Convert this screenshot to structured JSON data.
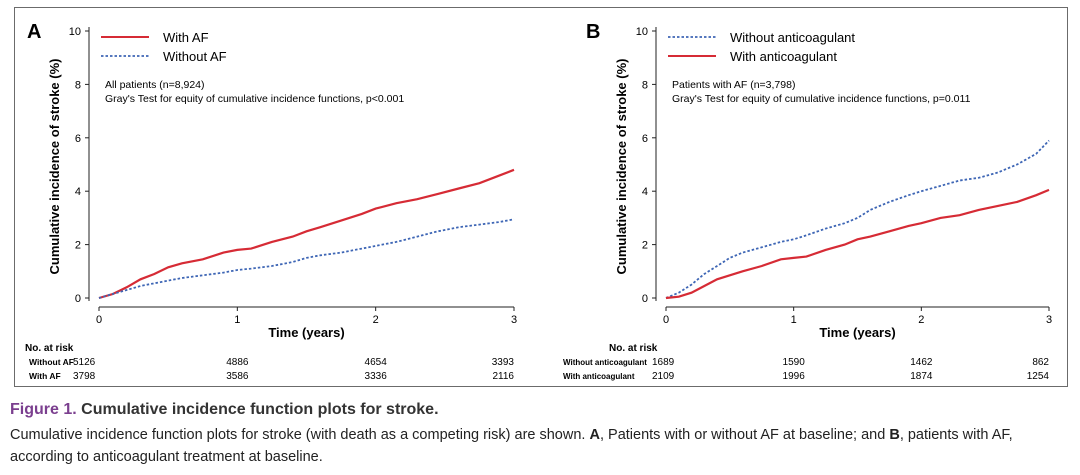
{
  "chart_data": [
    {
      "type": "line",
      "panel_label": "A",
      "ylabel": "Cumulative incidence of stroke (%)",
      "xlabel": "Time (years)",
      "xlim": [
        0,
        3
      ],
      "ylim": [
        0,
        10
      ],
      "xticks": [
        "0",
        "1",
        "2",
        "3"
      ],
      "yticks": [
        "0",
        "2",
        "4",
        "6",
        "8",
        "10"
      ],
      "grid": false,
      "legend_position": "top-left",
      "annotation_line1": "All patients (n=8,924)",
      "annotation_line2": "Gray's Test for equity of cumulative incidence functions, p<0.001",
      "series": [
        {
          "name": "With AF",
          "color": "#d62b35",
          "style": "solid",
          "x": [
            0,
            0.1,
            0.2,
            0.3,
            0.4,
            0.5,
            0.6,
            0.75,
            0.9,
            1.0,
            1.1,
            1.25,
            1.4,
            1.5,
            1.6,
            1.75,
            1.9,
            2.0,
            2.15,
            2.3,
            2.45,
            2.6,
            2.75,
            2.9,
            3.0
          ],
          "y": [
            0,
            0.15,
            0.4,
            0.7,
            0.9,
            1.15,
            1.3,
            1.45,
            1.7,
            1.8,
            1.85,
            2.1,
            2.3,
            2.5,
            2.65,
            2.9,
            3.15,
            3.35,
            3.55,
            3.7,
            3.9,
            4.1,
            4.3,
            4.6,
            4.8
          ]
        },
        {
          "name": "Without AF",
          "color": "#3e66b5",
          "style": "dotted",
          "x": [
            0,
            0.1,
            0.2,
            0.3,
            0.4,
            0.5,
            0.6,
            0.75,
            0.9,
            1.0,
            1.1,
            1.25,
            1.4,
            1.5,
            1.6,
            1.75,
            1.9,
            2.0,
            2.15,
            2.3,
            2.45,
            2.6,
            2.75,
            2.9,
            3.0
          ],
          "y": [
            0,
            0.15,
            0.3,
            0.45,
            0.55,
            0.65,
            0.75,
            0.85,
            0.95,
            1.05,
            1.1,
            1.2,
            1.35,
            1.5,
            1.6,
            1.7,
            1.85,
            1.95,
            2.1,
            2.3,
            2.5,
            2.65,
            2.75,
            2.85,
            2.95
          ]
        }
      ],
      "at_risk": {
        "header": "No. at risk",
        "rows": [
          {
            "label": "Without AF",
            "values": [
              "5126",
              "4886",
              "4654",
              "3393"
            ]
          },
          {
            "label": "With AF",
            "values": [
              "3798",
              "3586",
              "3336",
              "2116"
            ]
          }
        ]
      }
    },
    {
      "type": "line",
      "panel_label": "B",
      "ylabel": "Cumulative incidence of stroke (%)",
      "xlabel": "Time (years)",
      "xlim": [
        0,
        3
      ],
      "ylim": [
        0,
        10
      ],
      "xticks": [
        "0",
        "1",
        "2",
        "3"
      ],
      "yticks": [
        "0",
        "2",
        "4",
        "6",
        "8",
        "10"
      ],
      "grid": false,
      "legend_position": "top-left",
      "annotation_line1": "Patients with AF (n=3,798)",
      "annotation_line2": "Gray's Test for equity of cumulative incidence functions, p=0.011",
      "series": [
        {
          "name": "Without anticoagulant",
          "color": "#3e66b5",
          "style": "dotted",
          "x": [
            0,
            0.1,
            0.2,
            0.3,
            0.4,
            0.5,
            0.6,
            0.75,
            0.9,
            1.0,
            1.1,
            1.25,
            1.4,
            1.5,
            1.6,
            1.75,
            1.9,
            2.0,
            2.15,
            2.3,
            2.45,
            2.6,
            2.75,
            2.9,
            3.0
          ],
          "y": [
            0,
            0.2,
            0.5,
            0.9,
            1.2,
            1.5,
            1.7,
            1.9,
            2.1,
            2.2,
            2.35,
            2.6,
            2.8,
            3.0,
            3.3,
            3.6,
            3.85,
            4.0,
            4.2,
            4.4,
            4.5,
            4.7,
            5.0,
            5.4,
            5.9
          ]
        },
        {
          "name": "With anticoagulant",
          "color": "#d62b35",
          "style": "solid",
          "x": [
            0,
            0.1,
            0.2,
            0.3,
            0.4,
            0.5,
            0.6,
            0.75,
            0.9,
            1.0,
            1.1,
            1.25,
            1.4,
            1.5,
            1.6,
            1.75,
            1.9,
            2.0,
            2.15,
            2.3,
            2.45,
            2.6,
            2.75,
            2.9,
            3.0
          ],
          "y": [
            0,
            0.05,
            0.2,
            0.45,
            0.7,
            0.85,
            1.0,
            1.2,
            1.45,
            1.5,
            1.55,
            1.8,
            2.0,
            2.2,
            2.3,
            2.5,
            2.7,
            2.8,
            3.0,
            3.1,
            3.3,
            3.45,
            3.6,
            3.85,
            4.05
          ]
        }
      ],
      "at_risk": {
        "header": "No. at risk",
        "rows": [
          {
            "label": "Without anticoagulant",
            "values": [
              "1689",
              "1590",
              "1462",
              "862"
            ]
          },
          {
            "label": "With anticoagulant",
            "values": [
              "2109",
              "1996",
              "1874",
              "1254"
            ]
          }
        ]
      }
    }
  ],
  "caption": {
    "figure_number": "Figure 1.",
    "figure_title": "Cumulative incidence function plots for stroke.",
    "body_part1": "Cumulative incidence function plots for stroke (with death as a competing risk) are shown. ",
    "body_label_a": "A",
    "body_part2": ", Patients with or without AF at baseline; and ",
    "body_label_b": "B",
    "body_part3": ", patients with AF, according to anticoagulant treatment at baseline."
  }
}
